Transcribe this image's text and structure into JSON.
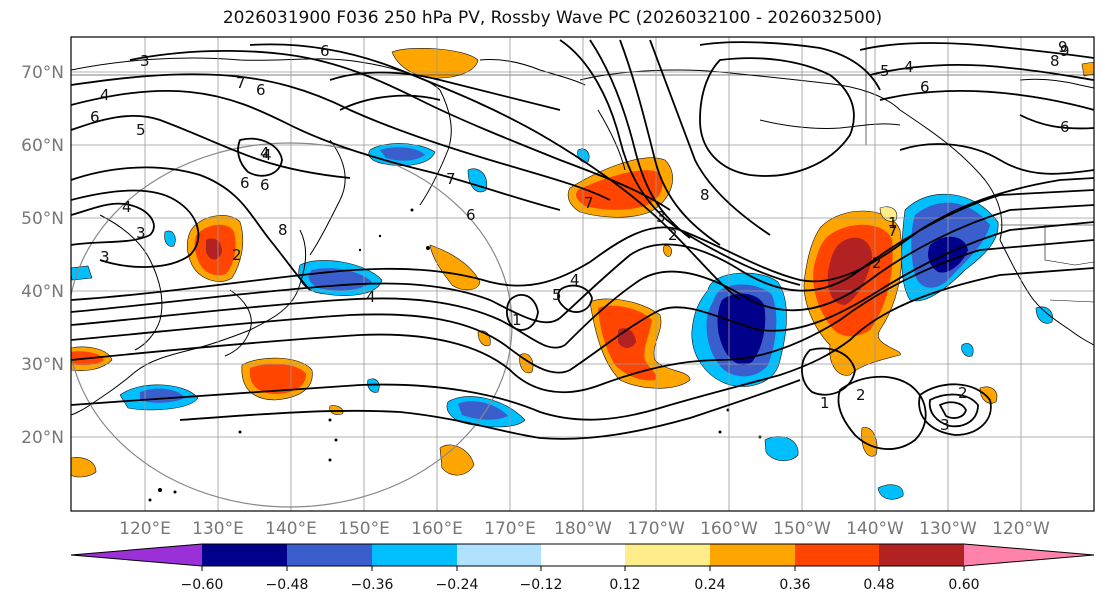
{
  "title": "2026031900 F036 250 hPa PV, Rossby Wave PC (2026032100 - 2026032500)",
  "lat_labels": [
    "70°N",
    "60°N",
    "50°N",
    "40°N",
    "30°N",
    "20°N"
  ],
  "lon_labels": [
    "120°E",
    "130°E",
    "140°E",
    "150°E",
    "160°E",
    "170°E",
    "180°W",
    "170°W",
    "160°W",
    "150°W",
    "140°W",
    "130°W",
    "120°W"
  ],
  "colorbar": {
    "colors": [
      "#9b30d9",
      "#00008b",
      "#3a5fcd",
      "#00bfff",
      "#b0e2ff",
      "#ffffff",
      "#ffec8b",
      "#ffa500",
      "#ff4500",
      "#b22222",
      "#ff82ab"
    ],
    "tick_labels": [
      "−0.60",
      "−0.48",
      "−0.36",
      "−0.24",
      "−0.12",
      "0.12",
      "0.24",
      "0.36",
      "0.48",
      "0.60"
    ]
  },
  "contour_labels": [
    "3",
    "4",
    "6",
    "5",
    "7",
    "6",
    "6",
    "4",
    "4",
    "3",
    "3",
    "6",
    "8",
    "9",
    "5",
    "4",
    "6",
    "6",
    "7",
    "3",
    "7",
    "8",
    "4",
    "2",
    "5",
    "4",
    "6",
    "7",
    "4",
    "2",
    "1",
    "1",
    "2",
    "2",
    "1",
    "3",
    "2",
    "8",
    "9",
    "6"
  ]
}
